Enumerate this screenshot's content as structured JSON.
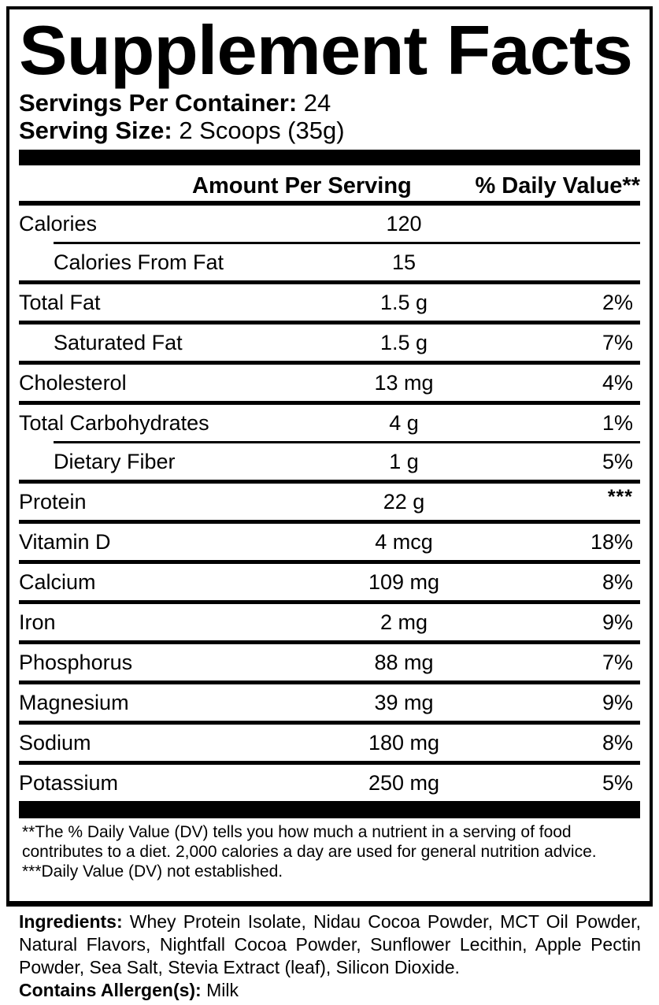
{
  "title": "Supplement Facts",
  "serving_info": {
    "servings_label": "Servings Per Container:",
    "servings_value": "24",
    "size_label": "Serving Size:",
    "size_value": "2 Scoops (35g)"
  },
  "table": {
    "amount_header": "Amount Per Serving",
    "dv_header": "% Daily Value**",
    "rows": [
      {
        "name": "Calories",
        "amount": "120",
        "dv": "",
        "indent": false,
        "sep": "thin-indent"
      },
      {
        "name": "Calories From Fat",
        "amount": "15",
        "dv": "",
        "indent": true,
        "sep": "full"
      },
      {
        "name": "Total Fat",
        "amount": "1.5 g",
        "dv": "2%",
        "indent": false,
        "sep": "full"
      },
      {
        "name": "Saturated Fat",
        "amount": "1.5 g",
        "dv": "7%",
        "indent": true,
        "sep": "full"
      },
      {
        "name": "Cholesterol",
        "amount": "13 mg",
        "dv": "4%",
        "indent": false,
        "sep": "full"
      },
      {
        "name": "Total Carbohydrates",
        "amount": "4 g",
        "dv": "1%",
        "indent": false,
        "sep": "thin-indent"
      },
      {
        "name": "Dietary Fiber",
        "amount": "1 g",
        "dv": "5%",
        "indent": true,
        "sep": "full"
      },
      {
        "name": "Protein",
        "amount": "22 g",
        "dv": "***",
        "indent": false,
        "sep": "full"
      },
      {
        "name": "Vitamin D",
        "amount": "4 mcg",
        "dv": "18%",
        "indent": false,
        "sep": "full"
      },
      {
        "name": "Calcium",
        "amount": "109 mg",
        "dv": "8%",
        "indent": false,
        "sep": "full"
      },
      {
        "name": "Iron",
        "amount": "2 mg",
        "dv": "9%",
        "indent": false,
        "sep": "full"
      },
      {
        "name": "Phosphorus",
        "amount": "88 mg",
        "dv": "7%",
        "indent": false,
        "sep": "full"
      },
      {
        "name": "Magnesium",
        "amount": "39 mg",
        "dv": "9%",
        "indent": false,
        "sep": "full"
      },
      {
        "name": "Sodium",
        "amount": "180 mg",
        "dv": "8%",
        "indent": false,
        "sep": "full"
      },
      {
        "name": "Potassium",
        "amount": "250 mg",
        "dv": "5%",
        "indent": false,
        "sep": "none"
      }
    ]
  },
  "footnotes": {
    "dv_note": "**The % Daily Value (DV) tells you how much a nutrient in a serving of food contributes to a diet. 2,000 calories a day are used for general nutrition advice.",
    "not_established_note": "***Daily Value (DV) not established."
  },
  "ingredients": {
    "label": "Ingredients:",
    "list": "Whey Protein Isolate, Nidau Cocoa Powder, MCT Oil Powder, Natural Flavors, Nightfall Cocoa Powder, Sunflower Lecithin, Apple Pectin Powder, Sea Salt, Stevia Extract (leaf), Silicon Dioxide.",
    "allergen_label": "Contains Allergen(s):",
    "allergen_value": "Milk"
  },
  "colors": {
    "text": "#000000",
    "background": "#ffffff"
  }
}
